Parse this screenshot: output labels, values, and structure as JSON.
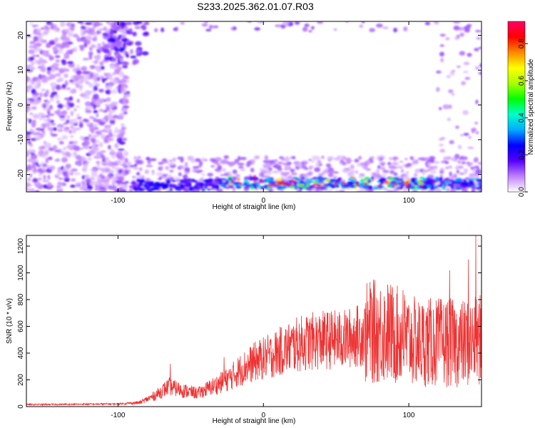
{
  "title": "S233.2025.362.01.07.R03",
  "chart_data": [
    {
      "type": "heatmap",
      "xlabel": "Height of straight line (km)",
      "ylabel": "Frequency (Hz)",
      "xlim": [
        -163,
        150
      ],
      "ylim": [
        -25,
        24
      ],
      "xticks": [
        -100,
        0,
        100
      ],
      "xtick_labels": [
        "-100",
        "0",
        "100"
      ],
      "yticks": [
        -20,
        -10,
        0,
        10,
        20
      ],
      "ytick_labels": [
        "-20",
        "-10",
        "0",
        "10",
        "20"
      ],
      "colorbar": {
        "label": "Normalized spectral amplitude",
        "range": [
          0,
          0.92
        ],
        "ticks": [
          0,
          0.2,
          0.4,
          0.6,
          0.8
        ],
        "tick_labels": [
          "0.0",
          "0.2",
          "0.4",
          "0.6",
          "0.8"
        ],
        "colors": [
          "#ffffff",
          "#c080ff",
          "#5500ff",
          "#0000ff",
          "#00aaff",
          "#00ffcc",
          "#00ff00",
          "#aaff00",
          "#ffff00",
          "#ff8800",
          "#ff0000",
          "#ff0066"
        ]
      },
      "grid": false
    },
    {
      "type": "line",
      "xlabel": "Height of straight line (km)",
      "ylabel": "SNR (10 * v/v)",
      "xlim": [
        -163,
        150
      ],
      "ylim": [
        0,
        1280
      ],
      "xticks": [
        -100,
        0,
        100
      ],
      "xtick_labels": [
        "-100",
        "0",
        "100"
      ],
      "yticks": [
        0,
        200,
        400,
        600,
        800,
        1000,
        1200
      ],
      "ytick_labels": [
        "0",
        "200",
        "400",
        "600",
        "800",
        "1000",
        "1200"
      ],
      "line_color": "#ee3333",
      "envelope": {
        "x": [
          -163,
          -120,
          -100,
          -85,
          -75,
          -65,
          -55,
          -45,
          -35,
          -25,
          -15,
          -5,
          5,
          15,
          25,
          35,
          45,
          55,
          65,
          75,
          85,
          95,
          105,
          115,
          125,
          135,
          145,
          150
        ],
        "y": [
          15,
          18,
          20,
          30,
          80,
          150,
          120,
          100,
          150,
          200,
          280,
          340,
          380,
          430,
          470,
          490,
          500,
          500,
          530,
          560,
          560,
          520,
          480,
          480,
          480,
          470,
          480,
          500
        ]
      },
      "spikes": [
        {
          "x": -64,
          "y": 320
        },
        {
          "x": -27,
          "y": 370
        },
        {
          "x": 74,
          "y": 850
        },
        {
          "x": 96,
          "y": 870
        },
        {
          "x": 128,
          "y": 1020
        },
        {
          "x": 141,
          "y": 1100
        },
        {
          "x": 146,
          "y": 1280
        },
        {
          "x": 150,
          "y": 1110
        }
      ],
      "grid": false
    }
  ]
}
